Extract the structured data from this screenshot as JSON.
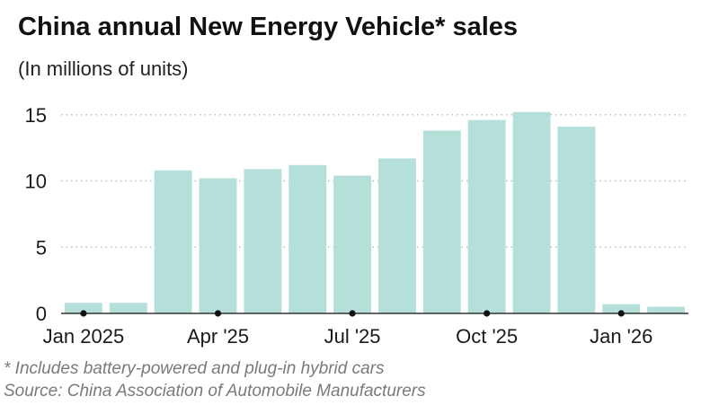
{
  "chart_data": {
    "type": "bar",
    "title": "China annual New Energy Vehicle* sales",
    "subtitle": "(In millions of units)",
    "categories": [
      "Jan 2025",
      "Feb 2025",
      "Mar 2025",
      "Apr 2025",
      "May 2025",
      "Jun 2025",
      "Jul 2025",
      "Aug 2025",
      "Sep 2025",
      "Oct 2025",
      "Nov 2025",
      "Dec 2025",
      "Jan 2026",
      "Feb 2026"
    ],
    "values": [
      0.8,
      0.8,
      10.8,
      10.2,
      10.9,
      11.2,
      10.4,
      11.7,
      13.8,
      14.6,
      15.2,
      14.1,
      0.7,
      0.5
    ],
    "x_tick_labels": [
      {
        "category_index": 0,
        "label": "Jan 2025"
      },
      {
        "category_index": 3,
        "label": "Apr '25"
      },
      {
        "category_index": 6,
        "label": "Jul '25"
      },
      {
        "category_index": 9,
        "label": "Oct '25"
      },
      {
        "category_index": 12,
        "label": "Jan '26"
      }
    ],
    "y_ticks": [
      0,
      5,
      10,
      15
    ],
    "ylim": [
      0,
      16
    ],
    "xlabel": "",
    "ylabel": "",
    "grid": "horizontal dotted",
    "bar_color": "#b5e0da",
    "grid_color": "#bdbdbd",
    "axis_color": "#333333"
  },
  "footnotes": {
    "note": "* Includes battery-powered and plug-in hybrid cars",
    "source": "Source: China Association of Automobile Manufacturers"
  }
}
